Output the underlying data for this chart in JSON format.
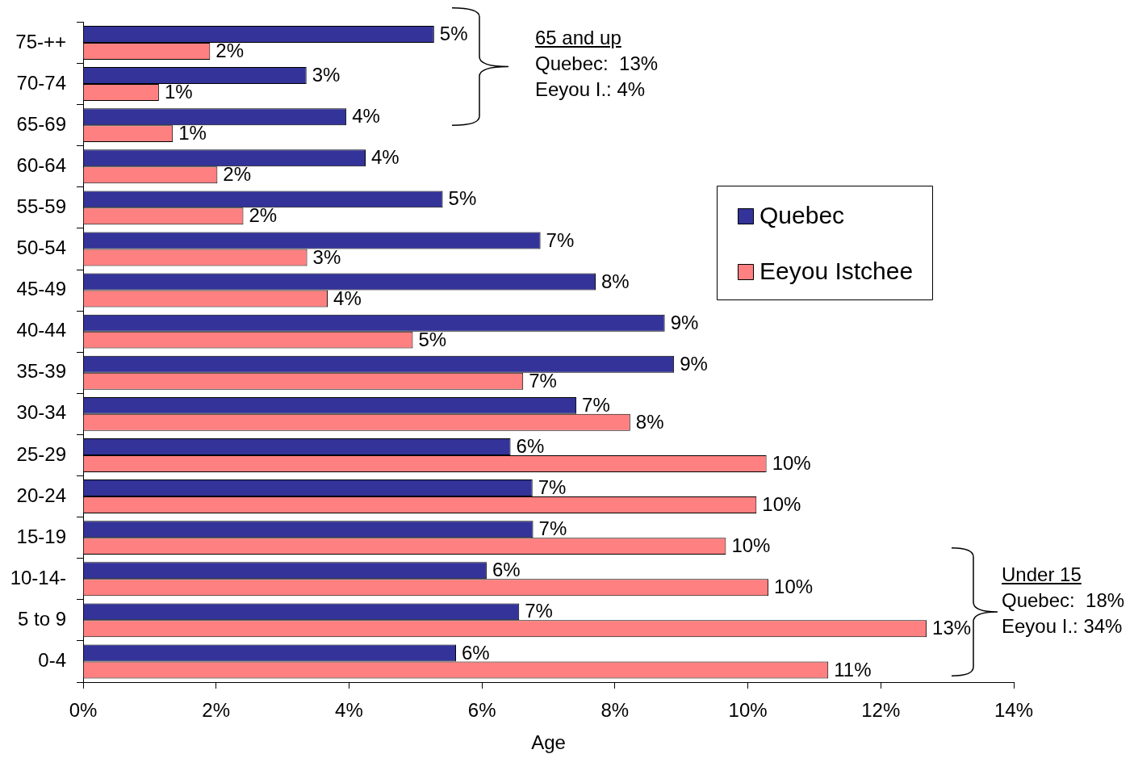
{
  "chart_data": {
    "type": "bar",
    "orientation": "horizontal",
    "categories": [
      "75-++",
      "70-74",
      "65-69",
      "60-64",
      "55-59",
      "50-54",
      "45-49",
      "40-44",
      "35-39",
      "30-34",
      "25-29",
      "20-24",
      "15-19",
      "10-14-",
      "5 to 9",
      "0-4"
    ],
    "series": [
      {
        "name": "Quebec",
        "color": "#333399",
        "values": [
          5.28,
          3.36,
          3.96,
          4.25,
          5.41,
          6.88,
          7.71,
          8.75,
          8.89,
          7.42,
          6.43,
          6.76,
          6.77,
          6.07,
          6.56,
          5.61
        ],
        "value_labels": [
          "5%",
          "3%",
          "4%",
          "4%",
          "5%",
          "7%",
          "8%",
          "9%",
          "9%",
          "7%",
          "6%",
          "7%",
          "7%",
          "6%",
          "7%",
          "6%"
        ]
      },
      {
        "name": "Eeyou Istchee",
        "color": "#ff8080",
        "values": [
          1.91,
          1.14,
          1.35,
          2.02,
          2.41,
          3.37,
          3.68,
          4.96,
          6.62,
          8.23,
          10.28,
          10.13,
          9.67,
          10.31,
          12.69,
          11.21
        ],
        "value_labels": [
          "2%",
          "1%",
          "1%",
          "2%",
          "2%",
          "3%",
          "4%",
          "5%",
          "7%",
          "8%",
          "10%",
          "10%",
          "10%",
          "10%",
          "13%",
          "11%"
        ]
      }
    ],
    "xlabel": "Age",
    "xlim": [
      0,
      14
    ],
    "xticks": [
      {
        "value": 0,
        "label": "0%"
      },
      {
        "value": 2,
        "label": "2%"
      },
      {
        "value": 4,
        "label": "4%"
      },
      {
        "value": 6,
        "label": "6%"
      },
      {
        "value": 8,
        "label": "8%"
      },
      {
        "value": 10,
        "label": "10%"
      },
      {
        "value": 12,
        "label": "12%"
      },
      {
        "value": 14,
        "label": "14%"
      }
    ],
    "grid": false,
    "legend": "right",
    "annotations": [
      "65 and up\nQuebec:  13%\nEeyou I.: 4%",
      "Under 15\nQuebec:  18%\nEeyou I.: 34%"
    ]
  }
}
